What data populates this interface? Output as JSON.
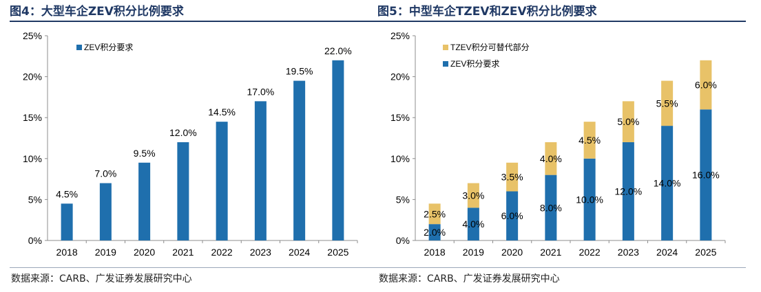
{
  "colors": {
    "title": "#1f3864",
    "blue": "#1f6fad",
    "gold": "#e8c268"
  },
  "figures": [
    {
      "title": "图4：大型车企ZEV积分比例要求",
      "source": "数据来源：CARB、广发证券发展研究中心",
      "chart_data": {
        "type": "bar",
        "categories": [
          "2018",
          "2019",
          "2020",
          "2021",
          "2022",
          "2023",
          "2024",
          "2025"
        ],
        "series": [
          {
            "name": "ZEV积分要求",
            "values": [
              4.5,
              7.0,
              9.5,
              12.0,
              14.5,
              17.0,
              19.5,
              22.0
            ],
            "labels": [
              "4.5%",
              "7.0%",
              "9.5%",
              "12.0%",
              "14.5%",
              "17.0%",
              "19.5%",
              "22.0%"
            ]
          }
        ],
        "ylim": [
          0,
          25
        ],
        "yticks": [
          "0%",
          "5%",
          "10%",
          "15%",
          "20%",
          "25%"
        ],
        "legend": "top-left",
        "grid": false
      }
    },
    {
      "title": "图5：中型车企TZEV和ZEV积分比例要求",
      "source": "数据来源：CARB、广发证券发展研究中心",
      "chart_data": {
        "type": "bar",
        "stacked": true,
        "categories": [
          "2018",
          "2019",
          "2020",
          "2021",
          "2022",
          "2023",
          "2024",
          "2025"
        ],
        "series": [
          {
            "name": "ZEV积分要求",
            "values": [
              2.0,
              4.0,
              6.0,
              8.0,
              10.0,
              12.0,
              14.0,
              16.0
            ],
            "labels": [
              "2.0%",
              "4.0%",
              "6.0%",
              "8.0%",
              "10.0%",
              "12.0%",
              "14.0%",
              "16.0%"
            ]
          },
          {
            "name": "TZEV积分可替代部分",
            "values": [
              2.5,
              3.0,
              3.5,
              4.0,
              4.5,
              5.0,
              5.5,
              6.0
            ],
            "labels": [
              "2.5%",
              "3.0%",
              "3.5%",
              "4.0%",
              "4.5%",
              "5.0%",
              "5.5%",
              "6.0%"
            ]
          }
        ],
        "ylim": [
          0,
          25
        ],
        "yticks": [
          "0%",
          "5%",
          "10%",
          "15%",
          "20%",
          "25%"
        ],
        "legend": "top-left",
        "grid": false
      }
    }
  ]
}
